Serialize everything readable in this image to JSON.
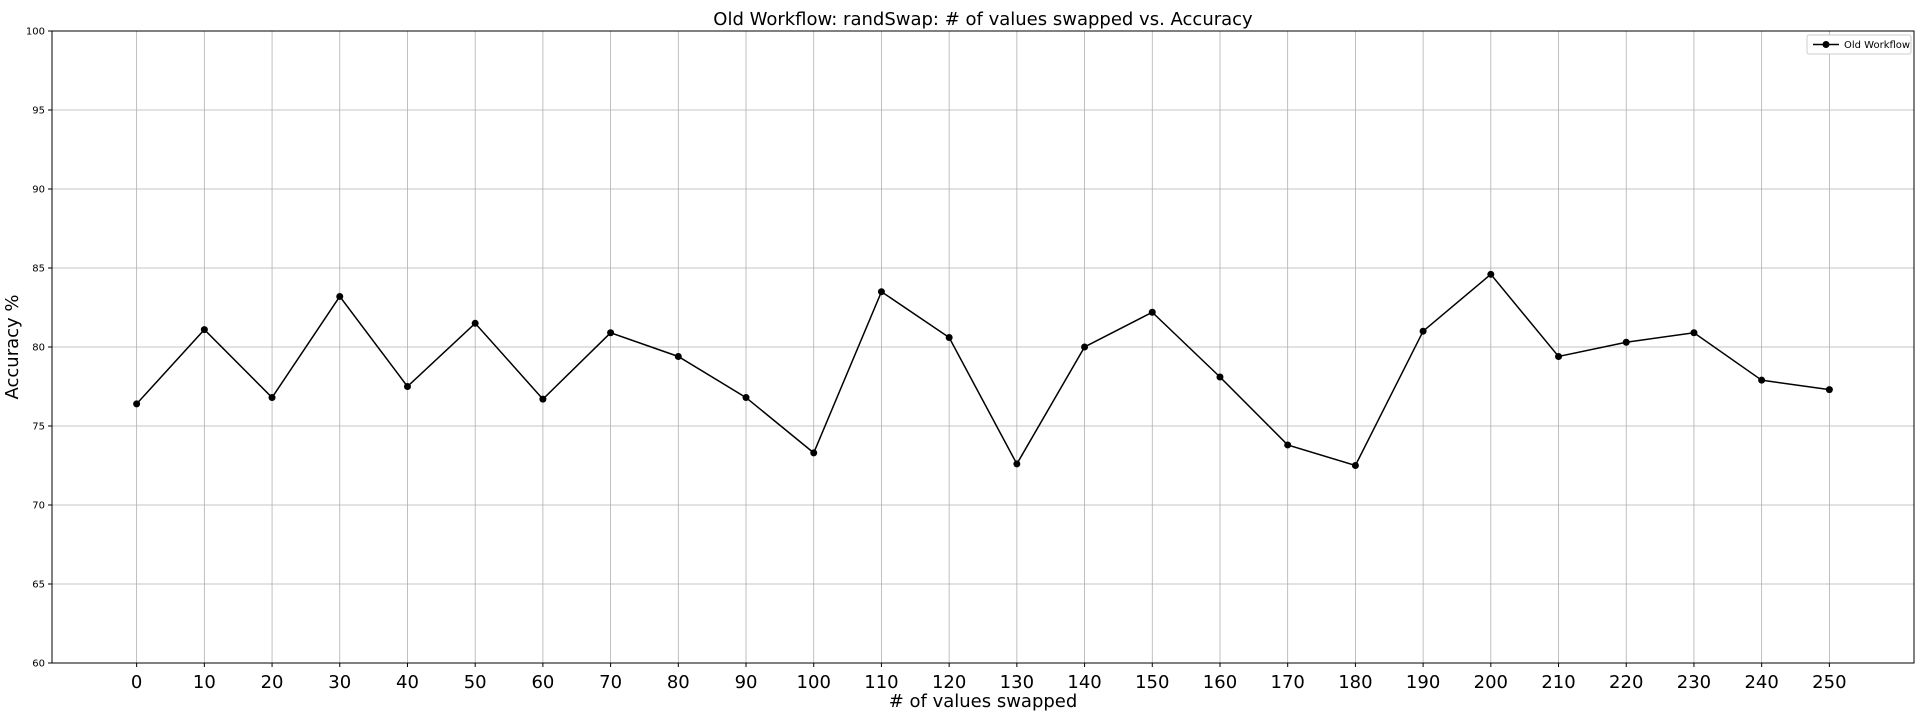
{
  "chart_data": {
    "type": "line",
    "title": "Old Workflow: randSwap: # of values swapped vs. Accuracy",
    "xlabel": "# of values swapped",
    "ylabel": "Accuracy %",
    "x": [
      0,
      10,
      20,
      30,
      40,
      50,
      60,
      70,
      80,
      90,
      100,
      110,
      120,
      130,
      140,
      150,
      160,
      170,
      180,
      190,
      200,
      210,
      220,
      230,
      240,
      250
    ],
    "xlim": [
      -12.5,
      262.5
    ],
    "ylim": [
      60,
      100
    ],
    "xticks": [
      "0",
      "10",
      "20",
      "30",
      "40",
      "50",
      "60",
      "70",
      "80",
      "90",
      "100",
      "110",
      "120",
      "130",
      "140",
      "150",
      "160",
      "170",
      "180",
      "190",
      "200",
      "210",
      "220",
      "230",
      "240",
      "250"
    ],
    "yticks": [
      "60",
      "65",
      "70",
      "75",
      "80",
      "85",
      "90",
      "95",
      "100"
    ],
    "grid": true,
    "legend_position": "top-right",
    "series": [
      {
        "name": "Old Workflow",
        "color": "#000000",
        "marker": "circle",
        "values": [
          76.4,
          81.1,
          76.8,
          83.2,
          77.5,
          81.5,
          76.7,
          80.9,
          79.4,
          76.8,
          73.3,
          83.5,
          80.6,
          72.6,
          80.0,
          82.2,
          78.1,
          73.8,
          72.5,
          81.0,
          84.6,
          79.4,
          80.3,
          80.9,
          77.9,
          77.3
        ]
      }
    ]
  }
}
